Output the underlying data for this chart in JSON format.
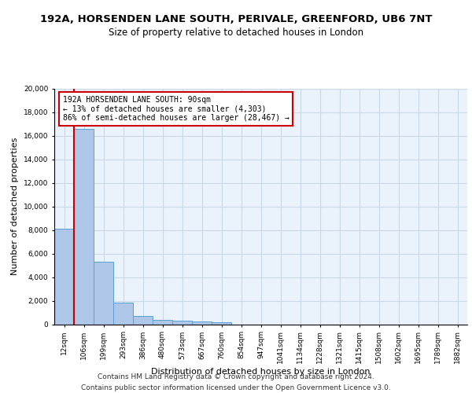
{
  "title_line1": "192A, HORSENDEN LANE SOUTH, PERIVALE, GREENFORD, UB6 7NT",
  "title_line2": "Size of property relative to detached houses in London",
  "xlabel": "Distribution of detached houses by size in London",
  "ylabel": "Number of detached properties",
  "categories": [
    "12sqm",
    "106sqm",
    "199sqm",
    "293sqm",
    "386sqm",
    "480sqm",
    "573sqm",
    "667sqm",
    "760sqm",
    "854sqm",
    "947sqm",
    "1041sqm",
    "1134sqm",
    "1228sqm",
    "1321sqm",
    "1415sqm",
    "1508sqm",
    "1602sqm",
    "1695sqm",
    "1789sqm",
    "1882sqm"
  ],
  "values": [
    8100,
    16600,
    5300,
    1850,
    700,
    370,
    280,
    220,
    200,
    0,
    0,
    0,
    0,
    0,
    0,
    0,
    0,
    0,
    0,
    0,
    0
  ],
  "bar_color": "#aec6e8",
  "bar_edge_color": "#5a9fd4",
  "vline_color": "#cc0000",
  "annotation_text": "192A HORSENDEN LANE SOUTH: 90sqm\n← 13% of detached houses are smaller (4,303)\n86% of semi-detached houses are larger (28,467) →",
  "annotation_box_color": "#ffffff",
  "annotation_box_edge_color": "#cc0000",
  "ylim": [
    0,
    20000
  ],
  "yticks": [
    0,
    2000,
    4000,
    6000,
    8000,
    10000,
    12000,
    14000,
    16000,
    18000,
    20000
  ],
  "grid_color": "#c8d8e8",
  "background_color": "#eaf2fb",
  "footer_text": "Contains HM Land Registry data © Crown copyright and database right 2024.\nContains public sector information licensed under the Open Government Licence v3.0.",
  "title_fontsize": 9.5,
  "subtitle_fontsize": 8.5,
  "tick_fontsize": 6.5,
  "ylabel_fontsize": 8,
  "xlabel_fontsize": 8,
  "footer_fontsize": 6.5,
  "annotation_fontsize": 7
}
